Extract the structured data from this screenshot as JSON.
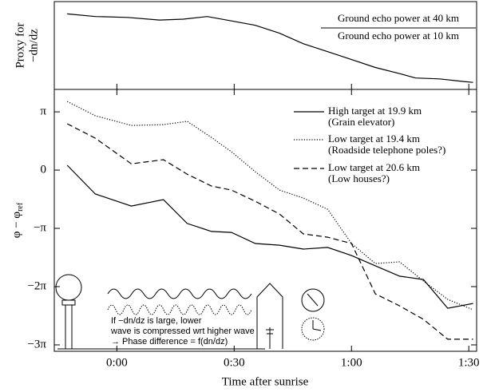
{
  "chart_data": [
    {
      "type": "line",
      "y_label": [
        "Proxy for",
        "−dn/dz"
      ],
      "annotation": {
        "numerator": "Ground echo power at 40 km",
        "denominator": "Ground echo power at 10 km"
      },
      "xlim": [
        -16,
        92
      ],
      "ylim": [
        0,
        1
      ],
      "series": [
        {
          "color": "#000000",
          "dash": "solid",
          "x": [
            -12.7,
            -5.5,
            2.7,
            10.9,
            17.0,
            23.1,
            29.3,
            35.4,
            41.6,
            47.7,
            53.9,
            60.0,
            66.1,
            72.3,
            76.4,
            82.5,
            88.7,
            91.1
          ],
          "values": [
            0.86,
            0.83,
            0.82,
            0.79,
            0.8,
            0.83,
            0.78,
            0.73,
            0.64,
            0.52,
            0.43,
            0.34,
            0.25,
            0.18,
            0.13,
            0.12,
            0.09,
            0.08
          ]
        }
      ]
    },
    {
      "type": "line",
      "x_label": "Time after sunrise",
      "y_label": {
        "text": "φ − φ",
        "subscript": "ref"
      },
      "xlim": [
        -16,
        92
      ],
      "ylim": [
        -9.77,
        4.35
      ],
      "xticks": [
        {
          "value": 0,
          "label": "0:00"
        },
        {
          "value": 30,
          "label": "0:30"
        },
        {
          "value": 60,
          "label": "1:00"
        },
        {
          "value": 90,
          "label": "1:30"
        }
      ],
      "yticks": [
        {
          "value": 3.1416,
          "label": "π"
        },
        0,
        {
          "value": -3.1416,
          "label": "−π"
        },
        {
          "value": -6.2832,
          "label": "−2π"
        },
        {
          "value": -9.4248,
          "label": "−3π"
        }
      ],
      "inset_text": [
        "If −dn/dz is large, lower",
        "wave is compressed wrt higher wave",
        "→ Phase difference = f(dn/dz)"
      ],
      "series": [
        {
          "name": "High target at 19.9 km",
          "note": "(Grain elevator)",
          "color": "#000000",
          "dash": "solid",
          "x": [
            -12.7,
            -5.5,
            3.7,
            11.9,
            18.0,
            24.2,
            29.3,
            35.4,
            41.6,
            47.7,
            53.9,
            60.0,
            66.1,
            72.3,
            78.4,
            84.6,
            91.1
          ],
          "values": [
            0.26,
            -1.29,
            -1.94,
            -1.59,
            -2.88,
            -3.31,
            -3.36,
            -3.96,
            -4.05,
            -4.26,
            -4.17,
            -4.61,
            -5.16,
            -5.72,
            -5.9,
            -7.45,
            -7.19
          ]
        },
        {
          "name": "Low target at 19.4 km",
          "note": "(Roadside telephone poles?)",
          "color": "#000000",
          "dash": "dotted",
          "x": [
            -12.7,
            -5.5,
            3.7,
            11.9,
            18.0,
            24.2,
            29.3,
            35.4,
            41.6,
            47.7,
            53.9,
            60.0,
            66.1,
            72.3,
            78.4,
            84.6,
            91.1
          ],
          "values": [
            3.7,
            2.93,
            2.41,
            2.45,
            2.63,
            1.76,
            0.99,
            -0.09,
            -1.08,
            -1.51,
            -2.11,
            -3.96,
            -5.04,
            -4.95,
            -5.98,
            -6.97,
            -7.53
          ]
        },
        {
          "name": "Low target at 20.6 km",
          "note": "(Low houses?)",
          "color": "#000000",
          "dash": "dashed",
          "x": [
            -12.7,
            -5.5,
            3.7,
            11.9,
            18.0,
            24.2,
            29.3,
            35.4,
            41.6,
            47.7,
            53.9,
            60.0,
            66.1,
            72.3,
            78.4,
            84.6,
            91.1
          ],
          "values": [
            2.5,
            1.72,
            0.34,
            0.56,
            -0.22,
            -0.86,
            -1.08,
            -1.68,
            -2.37,
            -3.44,
            -3.62,
            -3.96,
            -6.67,
            -7.32,
            -8.05,
            -9.12,
            -9.12
          ]
        }
      ]
    }
  ]
}
